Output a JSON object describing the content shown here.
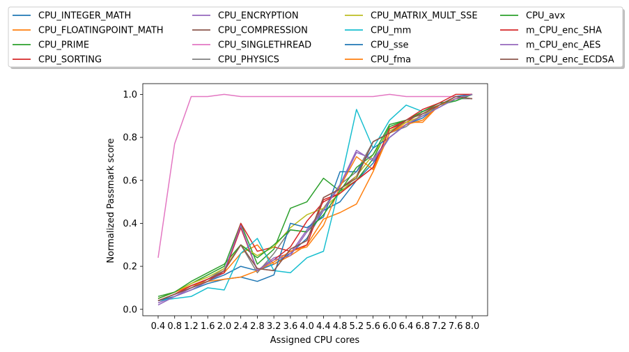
{
  "chart_data": {
    "type": "line",
    "title": "",
    "xlabel": "Assigned CPU cores",
    "ylabel": "Normalized Passmark score",
    "x": [
      0.4,
      0.8,
      1.2,
      1.6,
      2.0,
      2.4,
      2.8,
      3.2,
      3.6,
      4.0,
      4.4,
      4.8,
      5.2,
      5.6,
      6.0,
      6.4,
      6.8,
      7.2,
      7.6,
      8.0
    ],
    "x_tick_labels": [
      "0.4",
      "0.8",
      "1.2",
      "1.6",
      "2.0",
      "2.4",
      "2.8",
      "3.2",
      "3.6",
      "4.0",
      "4.4",
      "4.8",
      "5.2",
      "5.6",
      "6.0",
      "6.4",
      "6.8",
      "7.2",
      "7.6",
      "8.0"
    ],
    "y_ticks": [
      0.0,
      0.2,
      0.4,
      0.6,
      0.8,
      1.0
    ],
    "y_tick_labels": [
      "0.0",
      "0.2",
      "0.4",
      "0.6",
      "0.8",
      "1.0"
    ],
    "ylim": [
      -0.03,
      1.05
    ],
    "legend_position": "top, outside plot, 4 columns",
    "grid": false,
    "series": [
      {
        "name": "CPU_INTEGER_MATH",
        "color": "#1f77b4",
        "values": [
          0.04,
          0.07,
          0.1,
          0.13,
          0.16,
          0.2,
          0.18,
          0.21,
          0.26,
          0.33,
          0.46,
          0.5,
          0.6,
          0.68,
          0.8,
          0.86,
          0.9,
          0.94,
          0.98,
          1.0
        ]
      },
      {
        "name": "CPU_FLOATINGPOINT_MATH",
        "color": "#ff7f0e",
        "values": [
          0.05,
          0.08,
          0.11,
          0.14,
          0.17,
          0.26,
          0.3,
          0.21,
          0.25,
          0.3,
          0.42,
          0.45,
          0.49,
          0.64,
          0.82,
          0.87,
          0.87,
          0.95,
          0.98,
          1.0
        ]
      },
      {
        "name": "CPU_PRIME",
        "color": "#2ca02c",
        "values": [
          0.06,
          0.08,
          0.12,
          0.16,
          0.2,
          0.4,
          0.21,
          0.28,
          0.47,
          0.5,
          0.61,
          0.55,
          0.6,
          0.7,
          0.85,
          0.88,
          0.92,
          0.95,
          0.97,
          1.0
        ]
      },
      {
        "name": "CPU_SORTING",
        "color": "#d62728",
        "values": [
          0.04,
          0.07,
          0.11,
          0.14,
          0.17,
          0.4,
          0.27,
          0.29,
          0.27,
          0.3,
          0.51,
          0.54,
          0.6,
          0.66,
          0.84,
          0.87,
          0.92,
          0.95,
          0.99,
          1.0
        ]
      },
      {
        "name": "CPU_ENCRYPTION",
        "color": "#9467bd",
        "values": [
          0.03,
          0.06,
          0.1,
          0.13,
          0.17,
          0.38,
          0.18,
          0.24,
          0.26,
          0.37,
          0.47,
          0.57,
          0.73,
          0.7,
          0.8,
          0.86,
          0.9,
          0.95,
          0.98,
          1.0
        ]
      },
      {
        "name": "CPU_COMPRESSION",
        "color": "#8c564b",
        "values": [
          0.04,
          0.07,
          0.1,
          0.14,
          0.18,
          0.3,
          0.19,
          0.18,
          0.28,
          0.32,
          0.52,
          0.56,
          0.62,
          0.78,
          0.82,
          0.88,
          0.91,
          0.95,
          0.99,
          0.98
        ]
      },
      {
        "name": "CPU_SINGLETHREAD",
        "color": "#e377c2",
        "values": [
          0.24,
          0.77,
          0.99,
          0.99,
          1.0,
          0.99,
          0.99,
          0.99,
          0.99,
          0.99,
          0.99,
          0.99,
          0.99,
          0.99,
          1.0,
          0.99,
          0.99,
          0.99,
          0.99,
          1.0
        ]
      },
      {
        "name": "CPU_PHYSICS",
        "color": "#7f7f7f",
        "values": [
          0.04,
          0.07,
          0.11,
          0.14,
          0.19,
          0.3,
          0.17,
          0.26,
          0.37,
          0.36,
          0.47,
          0.58,
          0.64,
          0.78,
          0.82,
          0.85,
          0.91,
          0.94,
          0.98,
          0.98
        ]
      },
      {
        "name": "CPU_MATRIX_MULT_SSE",
        "color": "#bcbd22",
        "values": [
          0.05,
          0.08,
          0.12,
          0.15,
          0.19,
          0.3,
          0.25,
          0.29,
          0.38,
          0.44,
          0.47,
          0.54,
          0.62,
          0.72,
          0.83,
          0.87,
          0.9,
          0.95,
          0.98,
          1.0
        ]
      },
      {
        "name": "CPU_mm",
        "color": "#17becf",
        "values": [
          0.04,
          0.05,
          0.06,
          0.1,
          0.09,
          0.26,
          0.33,
          0.18,
          0.17,
          0.24,
          0.27,
          0.58,
          0.93,
          0.75,
          0.88,
          0.95,
          0.92,
          0.96,
          0.97,
          1.0
        ]
      },
      {
        "name": "CPU_sse",
        "color": "#1f77b4",
        "values": [
          0.04,
          0.06,
          0.09,
          0.12,
          0.14,
          0.15,
          0.13,
          0.16,
          0.4,
          0.38,
          0.43,
          0.64,
          0.64,
          0.75,
          0.8,
          0.86,
          0.89,
          0.95,
          0.99,
          1.0
        ]
      },
      {
        "name": "CPU_fma",
        "color": "#ff7f0e",
        "values": [
          0.05,
          0.08,
          0.11,
          0.13,
          0.14,
          0.15,
          0.18,
          0.22,
          0.27,
          0.29,
          0.39,
          0.57,
          0.71,
          0.65,
          0.82,
          0.86,
          0.88,
          0.95,
          0.98,
          1.0
        ]
      },
      {
        "name": "CPU_avx",
        "color": "#2ca02c",
        "values": [
          0.05,
          0.08,
          0.13,
          0.17,
          0.21,
          0.3,
          0.24,
          0.3,
          0.37,
          0.36,
          0.44,
          0.55,
          0.66,
          0.72,
          0.86,
          0.88,
          0.92,
          0.96,
          0.97,
          1.0
        ]
      },
      {
        "name": "m_CPU_enc_SHA",
        "color": "#d62728",
        "values": [
          0.04,
          0.07,
          0.11,
          0.14,
          0.17,
          0.38,
          0.18,
          0.23,
          0.29,
          0.41,
          0.5,
          0.54,
          0.6,
          0.66,
          0.84,
          0.88,
          0.93,
          0.96,
          1.0,
          1.0
        ]
      },
      {
        "name": "m_CPU_enc_AES",
        "color": "#9467bd",
        "values": [
          0.02,
          0.06,
          0.09,
          0.13,
          0.18,
          0.39,
          0.18,
          0.23,
          0.25,
          0.36,
          0.46,
          0.58,
          0.74,
          0.69,
          0.8,
          0.86,
          0.9,
          0.94,
          0.98,
          1.0
        ]
      },
      {
        "name": "m_CPU_enc_ECDSA",
        "color": "#8c564b",
        "values": [
          0.04,
          0.07,
          0.1,
          0.13,
          0.18,
          0.3,
          0.19,
          0.18,
          0.28,
          0.32,
          0.52,
          0.56,
          0.61,
          0.78,
          0.82,
          0.88,
          0.91,
          0.95,
          0.99,
          0.98
        ]
      }
    ]
  }
}
